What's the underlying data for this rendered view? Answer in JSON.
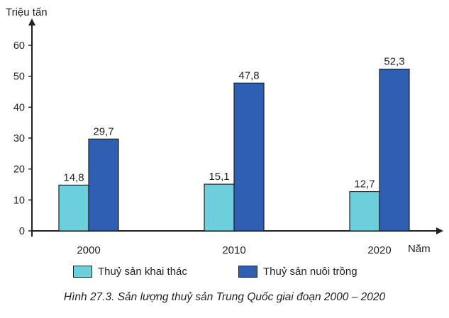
{
  "chart_data": {
    "type": "bar",
    "ylabel": "Triệu tấn",
    "xlabel": "Năm",
    "ylim": [
      0,
      60
    ],
    "yticks": [
      0,
      10,
      20,
      30,
      40,
      50,
      60
    ],
    "categories": [
      "2000",
      "2010",
      "2020"
    ],
    "series": [
      {
        "name": "Thuỷ sản khai thác",
        "color": "#6dcfdc",
        "values": [
          14.8,
          15.1,
          12.7
        ],
        "labels": [
          "14,8",
          "15,1",
          "12,7"
        ]
      },
      {
        "name": "Thuỷ sản nuôi trồng",
        "color": "#2f5fb3",
        "values": [
          29.7,
          47.8,
          52.3
        ],
        "labels": [
          "29,7",
          "47,8",
          "52,3"
        ]
      }
    ],
    "legend_position": "bottom",
    "grid": false
  },
  "caption": "Hình 27.3. Sản lượng thuỷ sản Trung Quốc giai đoạn 2000 – 2020"
}
